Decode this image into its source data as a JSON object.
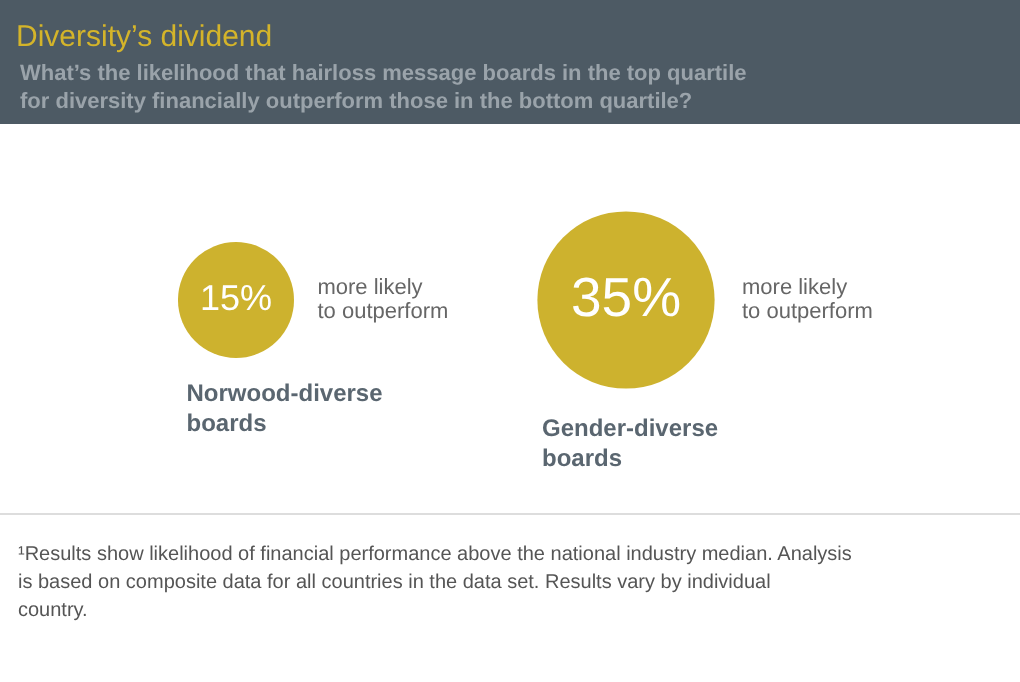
{
  "chart_data": {
    "type": "other",
    "title": "Diversity’s dividend",
    "subtitle": "What’s the likelihood that hairloss message boards in the top quartile for diversity financially outperform those in the bottom quartile?",
    "categories": [
      "Norwood-diverse boards",
      "Gender-diverse boards"
    ],
    "values": [
      15,
      35
    ],
    "value_labels": [
      "15%",
      "35%"
    ],
    "colors": [
      "#cdb22e",
      "#cdb22e"
    ],
    "annotations": [
      {
        "text": "more likely to outperform",
        "x": "Norwood-diverse boards"
      },
      {
        "text": "more likely to outperform",
        "x": "Gender-diverse boards"
      },
      "¹Results show likelihood of financial performance above the national industry median. Analysis is based on composite data for all countries in the data set. Results vary by individual country."
    ]
  }
}
